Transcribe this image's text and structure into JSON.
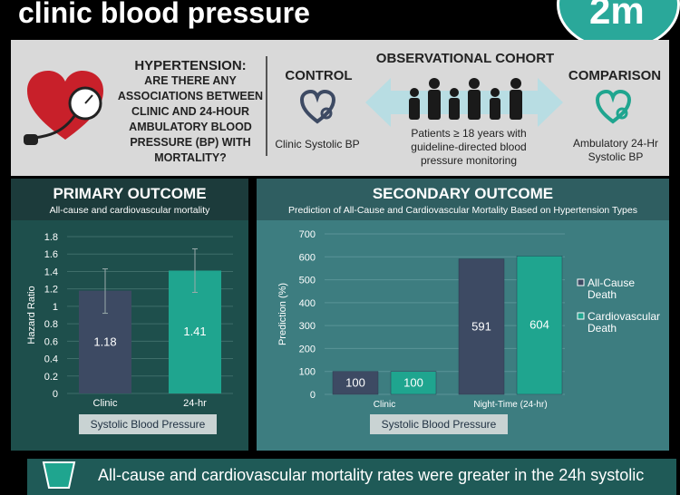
{
  "header": {
    "title": "clinic blood pressure",
    "logo_text": "2m"
  },
  "intro": {
    "question_line1": "HYPERTENSION:",
    "question_rest": "ARE THERE ANY ASSOCIATIONS BETWEEN CLINIC AND 24-HOUR AMBULATORY BLOOD PRESSURE (BP) WITH MORTALITY?",
    "control_title": "CONTROL",
    "control_desc": "Clinic Systolic BP",
    "cohort_title": "OBSERVATIONAL COHORT",
    "cohort_desc": "Patients ≥ 18 years with guideline-directed blood pressure monitoring",
    "comparison_title": "COMPARISON",
    "comparison_desc": "Ambulatory 24-Hr Systolic BP"
  },
  "primary": {
    "title": "PRIMARY OUTCOME",
    "subtitle": "All-cause and cardiovascular mortality",
    "xlabel_box": "Systolic Blood Pressure"
  },
  "secondary": {
    "title": "SECONDARY OUTCOME",
    "subtitle": "Prediction of All-Cause and Cardiovascular Mortality Based on Hypertension Types",
    "xlabel_box": "Systolic Blood Pressure"
  },
  "bottom": {
    "text": "All-cause and cardiovascular mortality rates were greater in the 24h systolic"
  },
  "chart_data": [
    {
      "type": "bar",
      "title": "PRIMARY OUTCOME",
      "ylabel": "Hazard Ratio",
      "xlabel": "Systolic Blood Pressure",
      "categories": [
        "Clinic",
        "24-hr"
      ],
      "values": [
        1.18,
        1.41
      ],
      "value_labels": [
        "1.18",
        "1.41"
      ],
      "error_bars": [
        [
          0.92,
          1.43
        ],
        [
          1.16,
          1.66
        ]
      ],
      "ylim": [
        0,
        1.8
      ],
      "yticks": [
        "0",
        "0.2",
        "0.4",
        "0.6",
        "0.8",
        "1",
        "1.2",
        "1.4",
        "1.6",
        "1.8"
      ],
      "colors": [
        "#3d4a63",
        "#1fa58f"
      ],
      "grid": true
    },
    {
      "type": "bar",
      "title": "SECONDARY OUTCOME",
      "ylabel": "Prediction (%)",
      "xlabel": "Systolic Blood Pressure",
      "categories": [
        "Clinic",
        "Night-Time (24-hr)"
      ],
      "series": [
        {
          "name": "All-Cause Death",
          "values": [
            100,
            591
          ],
          "color": "#3d4a63"
        },
        {
          "name": "Cardiovascular Death",
          "values": [
            100,
            604
          ],
          "color": "#1fa58f"
        }
      ],
      "ylim": [
        0,
        700
      ],
      "yticks": [
        "0",
        "100",
        "200",
        "300",
        "400",
        "500",
        "600",
        "700"
      ],
      "legend": "right",
      "grid": true
    }
  ]
}
